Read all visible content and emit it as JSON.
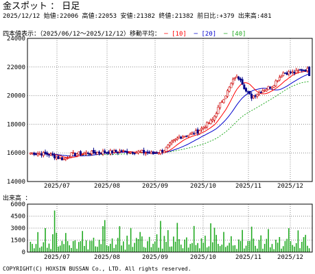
{
  "header": {
    "title": "金スポット ： 日足",
    "info": "2025/12/12 始値:22006 高値:22053 安値:21382 終値:21382 前日比:+379 出来高:481"
  },
  "legend": {
    "prefix": "四本値表示：（2025/06/12～2025/12/12）移動平均：",
    "ma10": "[10]",
    "ma20": "[20]",
    "ma40": "[40]",
    "ma10_color": "#ff0000",
    "ma20_color": "#0000cc",
    "ma40_color": "#22aa22"
  },
  "volume_title": "出来高 ：",
  "copyright": "COPYRIGHT(C) HOXSIN BUSSAN Co., LTD. All rights reserved.",
  "chart_data": [
    {
      "type": "candlestick",
      "title": "金スポット ： 日足",
      "x_tick_labels": [
        "2025/07",
        "2025/08",
        "2025/09",
        "2025/10",
        "2025/11",
        "2025/12"
      ],
      "y_tick_labels": [
        "24000",
        "22000",
        "20000",
        "18000",
        "16000",
        "14000"
      ],
      "ylim": [
        14000,
        24000
      ],
      "grid": true,
      "last_bar": {
        "date": "2025/12/12",
        "open": 22006,
        "high": 22053,
        "low": 21382,
        "close": 21382
      },
      "close_anchors": [
        [
          0,
          16000
        ],
        [
          5,
          15950
        ],
        [
          10,
          15900
        ],
        [
          14,
          15700
        ],
        [
          18,
          15550
        ],
        [
          22,
          15900
        ],
        [
          30,
          16000
        ],
        [
          40,
          16050
        ],
        [
          50,
          16100
        ],
        [
          60,
          16050
        ],
        [
          66,
          15950
        ],
        [
          72,
          16200
        ],
        [
          76,
          16700
        ],
        [
          80,
          17100
        ],
        [
          86,
          17300
        ],
        [
          90,
          17500
        ],
        [
          95,
          18000
        ],
        [
          98,
          18300
        ],
        [
          102,
          19400
        ],
        [
          106,
          20300
        ],
        [
          110,
          21300
        ],
        [
          113,
          21200
        ],
        [
          116,
          20300
        ],
        [
          119,
          19900
        ],
        [
          124,
          20300
        ],
        [
          130,
          20700
        ],
        [
          136,
          21600
        ],
        [
          142,
          21600
        ],
        [
          146,
          21800
        ],
        [
          150,
          21800
        ]
      ],
      "series": [
        {
          "name": "[10]",
          "kind": "moving-average",
          "period": 10
        },
        {
          "name": "[20]",
          "kind": "moving-average",
          "period": 20
        },
        {
          "name": "[40]",
          "kind": "moving-average",
          "period": 40
        }
      ]
    },
    {
      "type": "bar",
      "title": "出来高 ：",
      "x_tick_labels": [
        "2025/07",
        "2025/08",
        "2025/09",
        "2025/10",
        "2025/11",
        "2025/12"
      ],
      "y_tick_labels": [
        "6000",
        "4500",
        "3000",
        "1500",
        "0"
      ],
      "ylim": [
        0,
        6000
      ],
      "grid": true,
      "last_value": 481,
      "volume_pattern": [
        1700,
        900,
        600,
        1300,
        2100,
        500,
        1000,
        1500,
        2800,
        700,
        1200,
        400,
        1800,
        1100,
        2400,
        600,
        900,
        1600,
        1300,
        3100
      ]
    }
  ]
}
